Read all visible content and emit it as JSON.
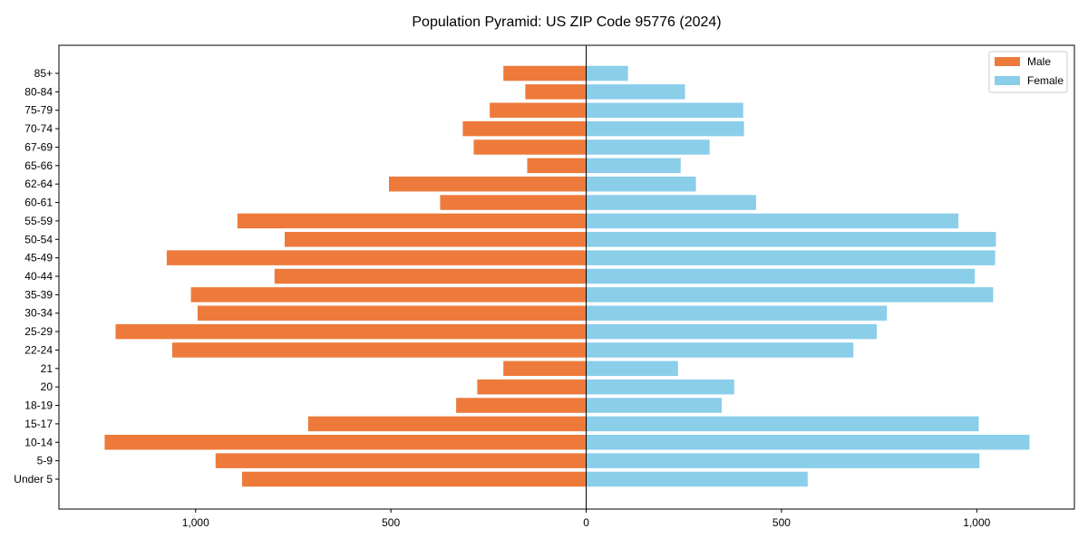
{
  "chart_data": {
    "type": "bar",
    "orientation": "horizontal-pyramid",
    "title": "Population Pyramid: US ZIP Code 95776 (2024)",
    "xlabel": "",
    "ylabel": "",
    "xlim": [
      -1350,
      1250
    ],
    "xticks": [
      {
        "value": -1000,
        "label": "1,000"
      },
      {
        "value": -500,
        "label": "500"
      },
      {
        "value": 0,
        "label": "0"
      },
      {
        "value": 500,
        "label": "500"
      },
      {
        "value": 1000,
        "label": "1,000"
      }
    ],
    "grid": false,
    "legend_position": "top-right",
    "categories": [
      "Under 5",
      "5-9",
      "10-14",
      "15-17",
      "18-19",
      "20",
      "21",
      "22-24",
      "25-29",
      "30-34",
      "35-39",
      "40-44",
      "45-49",
      "50-54",
      "55-59",
      "60-61",
      "62-64",
      "65-66",
      "67-69",
      "70-74",
      "75-79",
      "80-84",
      "85+"
    ],
    "series": [
      {
        "name": "Male",
        "color": "#ED7A3B",
        "values": [
          881,
          949,
          1233,
          712,
          333,
          279,
          212,
          1060,
          1205,
          995,
          1012,
          798,
          1074,
          772,
          893,
          374,
          505,
          151,
          288,
          316,
          247,
          156,
          212
        ]
      },
      {
        "name": "Female",
        "color": "#8ACEEA",
        "values": [
          567,
          1007,
          1135,
          1005,
          347,
          379,
          235,
          684,
          744,
          770,
          1042,
          995,
          1047,
          1049,
          953,
          435,
          281,
          242,
          316,
          404,
          402,
          253,
          107
        ]
      }
    ]
  }
}
